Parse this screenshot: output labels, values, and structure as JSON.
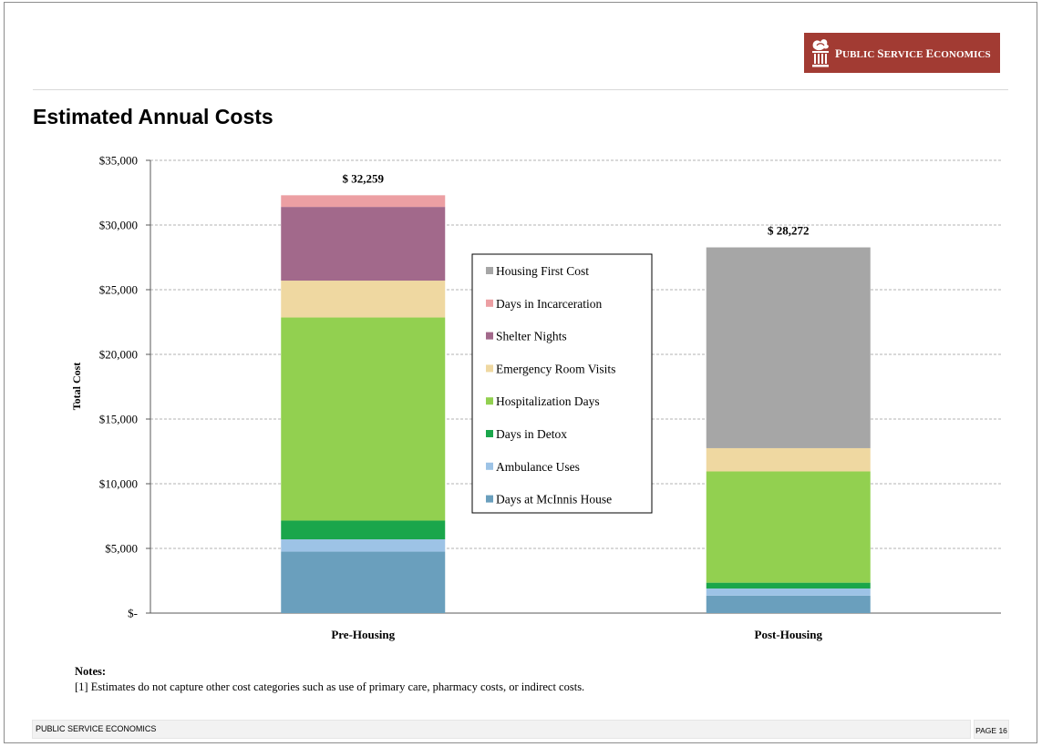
{
  "brand": {
    "logo_text": "PUBLIC SERVICE ECONOMICS",
    "logo_color": "#a23b33"
  },
  "page": {
    "title": "Estimated Annual Costs",
    "footer_left": "PUBLIC SERVICE ECONOMICS",
    "footer_right": "PAGE 16"
  },
  "notes": {
    "title": "Notes:",
    "line1": "[1] Estimates do not capture other cost categories such as use of primary care, pharmacy costs, or indirect costs."
  },
  "chart_data": {
    "type": "bar",
    "stacked": true,
    "title": "",
    "ylabel": "Total Cost",
    "xlabel": "",
    "ylim": [
      0,
      35000
    ],
    "yticks": [
      0,
      5000,
      10000,
      15000,
      20000,
      25000,
      30000,
      35000
    ],
    "ytick_labels": [
      "$-",
      "$5,000",
      "$10,000",
      "$15,000",
      "$20,000",
      "$25,000",
      "$30,000",
      "$35,000"
    ],
    "grid": true,
    "legend_position": "center",
    "categories": [
      "Pre-Housing",
      "Post-Housing"
    ],
    "totals": [
      "$ 32,259",
      "$ 28,272"
    ],
    "series": [
      {
        "name": "Days at McInnis House",
        "color": "#6a9fbd",
        "values": [
          4750,
          1350
        ]
      },
      {
        "name": "Ambulance Uses",
        "color": "#9dc3e6",
        "values": [
          950,
          550
        ]
      },
      {
        "name": "Days in Detox",
        "color": "#1aa64b",
        "values": [
          1450,
          450
        ]
      },
      {
        "name": "Hospitalization Days",
        "color": "#92d050",
        "values": [
          15700,
          8600
        ]
      },
      {
        "name": "Emergency Room Visits",
        "color": "#efd8a1",
        "values": [
          2850,
          1800
        ]
      },
      {
        "name": "Shelter Nights",
        "color": "#a2698b",
        "values": [
          5700,
          0
        ]
      },
      {
        "name": "Days in Incarceration",
        "color": "#ec9fa3",
        "values": [
          900,
          0
        ]
      },
      {
        "name": "Housing First Cost",
        "color": "#a6a6a6",
        "values": [
          0,
          15522
        ]
      }
    ],
    "legend_order": [
      "Housing First Cost",
      "Days in Incarceration",
      "Shelter Nights",
      "Emergency Room Visits",
      "Hospitalization Days",
      "Days in Detox",
      "Ambulance Uses",
      "Days at McInnis House"
    ]
  }
}
